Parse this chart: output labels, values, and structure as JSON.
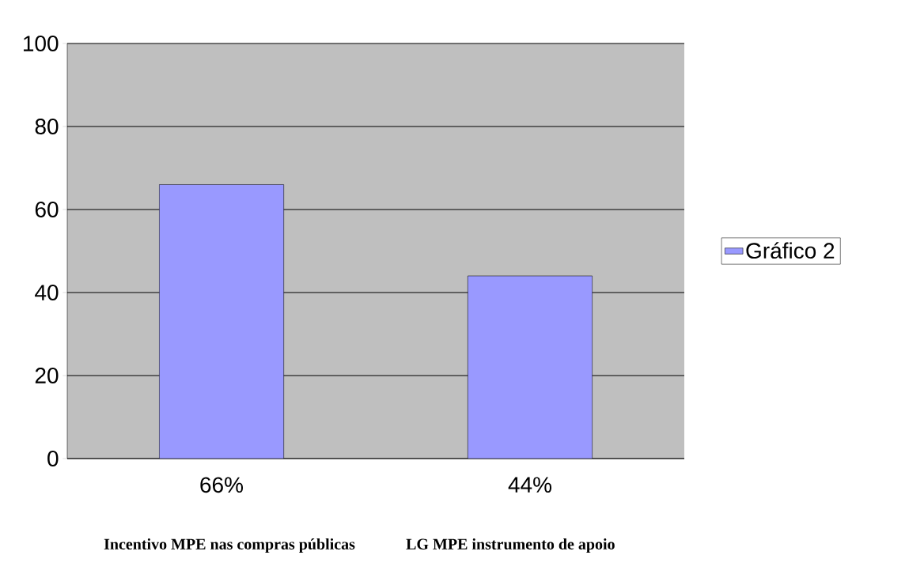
{
  "chart_data": {
    "type": "bar",
    "categories": [
      "66%",
      "44%"
    ],
    "series": [
      {
        "name": "Gráfico 2",
        "color": "#9999ff",
        "values": [
          66,
          44
        ]
      }
    ],
    "ylim": [
      0,
      100
    ],
    "yticks": [
      0,
      20,
      40,
      60,
      80,
      100
    ],
    "grid": "y",
    "legend": "right",
    "annotations": [
      "Incentivo MPE nas compras públicas",
      "LG MPE instrumento de apoio"
    ]
  }
}
